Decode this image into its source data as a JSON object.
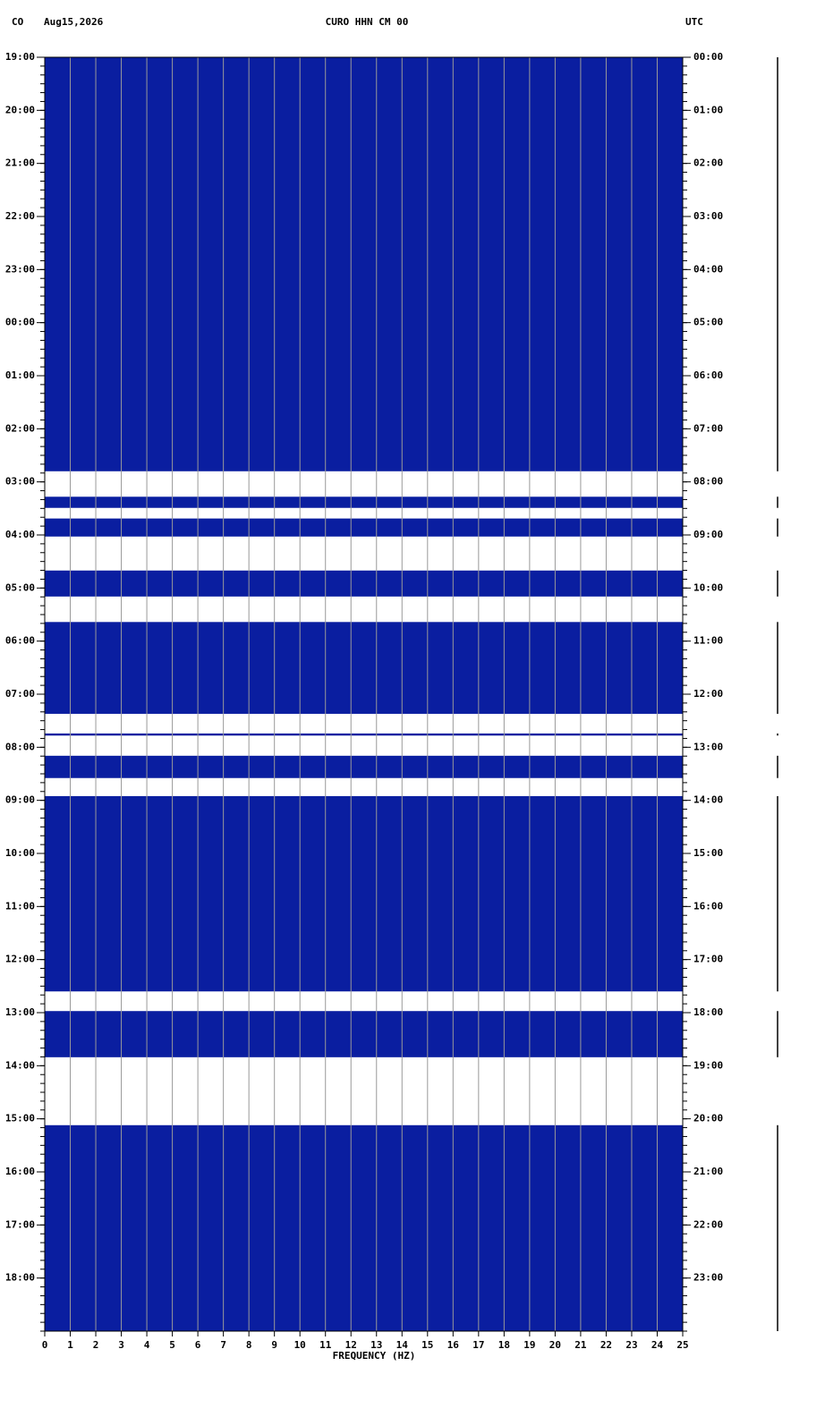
{
  "chart_data": {
    "type": "spectrogram",
    "network": "CO",
    "date": "Aug15,2026",
    "title": "CURO HHN CM 00",
    "timezone": "UTC",
    "x_label": "FREQUENCY (HZ)",
    "xlim": [
      0,
      25
    ],
    "xticks": [
      0,
      1,
      2,
      3,
      4,
      5,
      6,
      7,
      8,
      9,
      10,
      11,
      12,
      13,
      14,
      15,
      16,
      17,
      18,
      19,
      20,
      21,
      22,
      23,
      24,
      25
    ],
    "ylim": [
      0,
      24
    ],
    "yticks": [
      {
        "value": 0,
        "label": "19:00"
      },
      {
        "value": 1,
        "label": "20:00"
      },
      {
        "value": 2,
        "label": "21:00"
      },
      {
        "value": 3,
        "label": "22:00"
      },
      {
        "value": 4,
        "label": "23:00"
      },
      {
        "value": 5,
        "label": "00:00"
      },
      {
        "value": 6,
        "label": "01:00"
      },
      {
        "value": 7,
        "label": "02:00"
      },
      {
        "value": 8,
        "label": "03:00"
      },
      {
        "value": 9,
        "label": "04:00"
      },
      {
        "value": 10,
        "label": "05:00"
      },
      {
        "value": 11,
        "label": "06:00"
      },
      {
        "value": 12,
        "label": "07:00"
      },
      {
        "value": 13,
        "label": "08:00"
      },
      {
        "value": 14,
        "label": "09:00"
      },
      {
        "value": 15,
        "label": "10:00"
      },
      {
        "value": 16,
        "label": "11:00"
      },
      {
        "value": 17,
        "label": "12:00"
      },
      {
        "value": 18,
        "label": "13:00"
      },
      {
        "value": 19,
        "label": "14:00"
      },
      {
        "value": 20,
        "label": "15:00"
      },
      {
        "value": 21,
        "label": "16:00"
      },
      {
        "value": 22,
        "label": "17:00"
      },
      {
        "value": 23,
        "label": "18:00"
      }
    ],
    "y2ticks": [
      {
        "value": 0,
        "label": "00:00"
      },
      {
        "value": 1,
        "label": "01:00"
      },
      {
        "value": 2,
        "label": "02:00"
      },
      {
        "value": 3,
        "label": "03:00"
      },
      {
        "value": 4,
        "label": "04:00"
      },
      {
        "value": 5,
        "label": "05:00"
      },
      {
        "value": 6,
        "label": "06:00"
      },
      {
        "value": 7,
        "label": "07:00"
      },
      {
        "value": 8,
        "label": "08:00"
      },
      {
        "value": 9,
        "label": "09:00"
      },
      {
        "value": 10,
        "label": "10:00"
      },
      {
        "value": 11,
        "label": "11:00"
      },
      {
        "value": 12,
        "label": "12:00"
      },
      {
        "value": 13,
        "label": "13:00"
      },
      {
        "value": 14,
        "label": "14:00"
      },
      {
        "value": 15,
        "label": "15:00"
      },
      {
        "value": 16,
        "label": "16:00"
      },
      {
        "value": 17,
        "label": "17:00"
      },
      {
        "value": 18,
        "label": "18:00"
      },
      {
        "value": 19,
        "label": "19:00"
      },
      {
        "value": 20,
        "label": "20:00"
      },
      {
        "value": 21,
        "label": "21:00"
      },
      {
        "value": 22,
        "label": "22:00"
      },
      {
        "value": 23,
        "label": "23:00"
      }
    ],
    "background_color": "#0a1ea0",
    "gap_color": "#ffffff",
    "grid": true,
    "gaps": [
      {
        "start": 7.8,
        "end": 8.28
      },
      {
        "start": 8.49,
        "end": 8.69
      },
      {
        "start": 9.03,
        "end": 9.67
      },
      {
        "start": 10.16,
        "end": 10.64
      },
      {
        "start": 12.37,
        "end": 12.74
      },
      {
        "start": 12.78,
        "end": 13.16
      },
      {
        "start": 13.58,
        "end": 13.92
      },
      {
        "start": 17.6,
        "end": 17.97
      },
      {
        "start": 18.84,
        "end": 20.12
      }
    ]
  }
}
